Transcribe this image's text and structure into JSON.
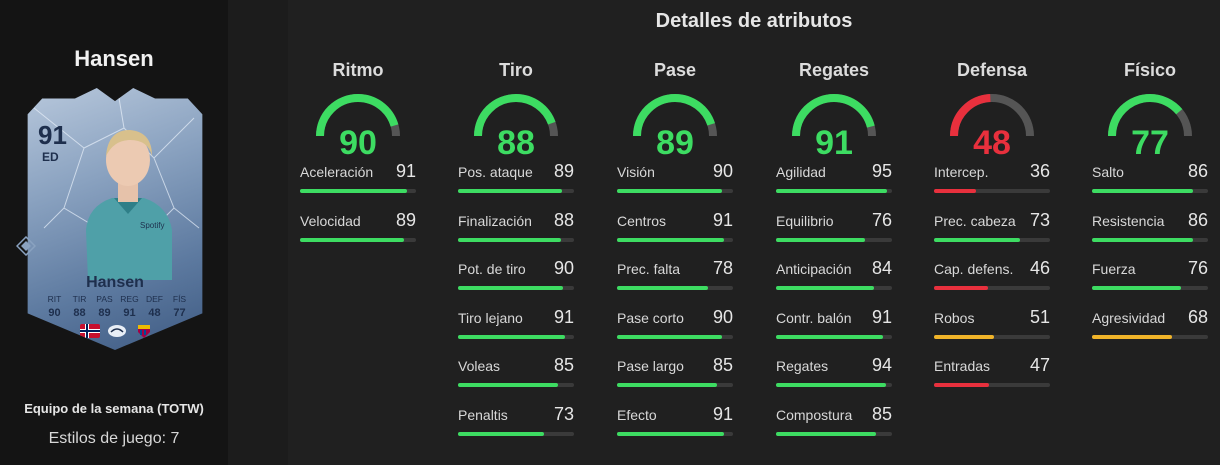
{
  "player": {
    "heading": "Hansen",
    "card_rating": "91",
    "card_position": "ED",
    "card_name": "Hansen",
    "card_stat_labels": [
      "RIT",
      "TIR",
      "PAS",
      "REG",
      "DEF",
      "FÍS"
    ],
    "card_stat_values": [
      "90",
      "88",
      "89",
      "91",
      "48",
      "77"
    ],
    "team_label": "Equipo de la semana (TOTW)",
    "styles_label": "Estilos de juego: 7"
  },
  "colors": {
    "high": "#3ddc62",
    "medium": "#f0b429",
    "low": "#e8303d",
    "track": "#3a3a3a",
    "gauge_track": "#555555"
  },
  "panel_title": "Detalles de atributos",
  "categories": [
    {
      "name": "Ritmo",
      "value": "90",
      "level": "high",
      "attributes": [
        {
          "name": "Aceleración",
          "value": "91",
          "level": "high"
        },
        {
          "name": "Velocidad",
          "value": "89",
          "level": "high"
        }
      ]
    },
    {
      "name": "Tiro",
      "value": "88",
      "level": "high",
      "attributes": [
        {
          "name": "Pos. ataque",
          "value": "89",
          "level": "high"
        },
        {
          "name": "Finalización",
          "value": "88",
          "level": "high"
        },
        {
          "name": "Pot. de tiro",
          "value": "90",
          "level": "high"
        },
        {
          "name": "Tiro lejano",
          "value": "91",
          "level": "high"
        },
        {
          "name": "Voleas",
          "value": "85",
          "level": "high"
        },
        {
          "name": "Penaltis",
          "value": "73",
          "level": "high"
        }
      ]
    },
    {
      "name": "Pase",
      "value": "89",
      "level": "high",
      "attributes": [
        {
          "name": "Visión",
          "value": "90",
          "level": "high"
        },
        {
          "name": "Centros",
          "value": "91",
          "level": "high"
        },
        {
          "name": "Prec. falta",
          "value": "78",
          "level": "high"
        },
        {
          "name": "Pase corto",
          "value": "90",
          "level": "high"
        },
        {
          "name": "Pase largo",
          "value": "85",
          "level": "high"
        },
        {
          "name": "Efecto",
          "value": "91",
          "level": "high"
        }
      ]
    },
    {
      "name": "Regates",
      "value": "91",
      "level": "high",
      "attributes": [
        {
          "name": "Agilidad",
          "value": "95",
          "level": "high"
        },
        {
          "name": "Equilibrio",
          "value": "76",
          "level": "high"
        },
        {
          "name": "Anticipación",
          "value": "84",
          "level": "high"
        },
        {
          "name": "Contr. balón",
          "value": "91",
          "level": "high"
        },
        {
          "name": "Regates",
          "value": "94",
          "level": "high"
        },
        {
          "name": "Compostura",
          "value": "85",
          "level": "high"
        }
      ]
    },
    {
      "name": "Defensa",
      "value": "48",
      "level": "low",
      "attributes": [
        {
          "name": "Intercep.",
          "value": "36",
          "level": "low"
        },
        {
          "name": "Prec. cabeza",
          "value": "73",
          "level": "high"
        },
        {
          "name": "Cap. defens.",
          "value": "46",
          "level": "low"
        },
        {
          "name": "Robos",
          "value": "51",
          "level": "medium"
        },
        {
          "name": "Entradas",
          "value": "47",
          "level": "low"
        }
      ]
    },
    {
      "name": "Físico",
      "value": "77",
      "level": "high",
      "attributes": [
        {
          "name": "Salto",
          "value": "86",
          "level": "high"
        },
        {
          "name": "Resistencia",
          "value": "86",
          "level": "high"
        },
        {
          "name": "Fuerza",
          "value": "76",
          "level": "high"
        },
        {
          "name": "Agresividad",
          "value": "68",
          "level": "medium"
        }
      ]
    }
  ]
}
